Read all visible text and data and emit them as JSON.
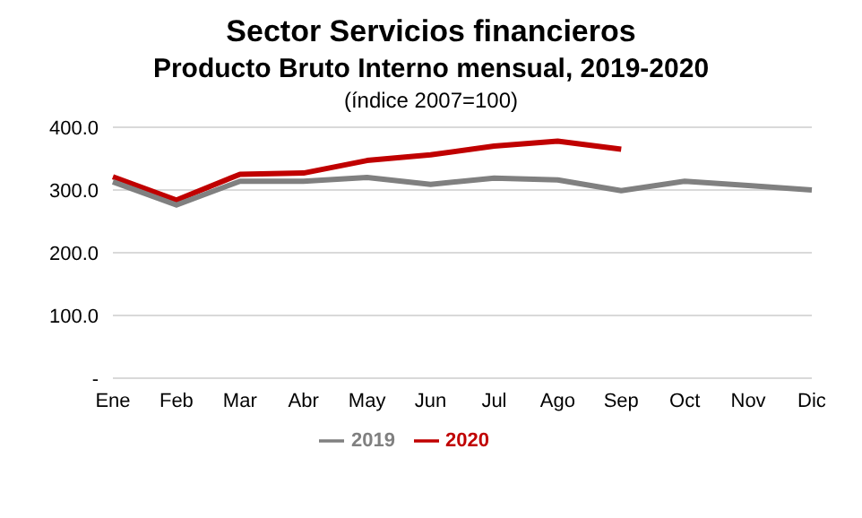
{
  "chart_data": {
    "type": "line",
    "title": "Sector Servicios financieros",
    "subtitle": "Producto Bruto Interno mensual, 2019-2020",
    "annotations": [
      "(índice 2007=100)"
    ],
    "categories": [
      "Ene",
      "Feb",
      "Mar",
      "Abr",
      "May",
      "Jun",
      "Jul",
      "Ago",
      "Sep",
      "Oct",
      "Nov",
      "Dic"
    ],
    "series": [
      {
        "name": "2020",
        "color": "#c00000",
        "values": [
          321,
          284,
          325,
          327,
          347,
          356,
          370,
          378,
          365,
          null,
          null,
          null
        ]
      },
      {
        "name": "2019",
        "color": "#808080",
        "values": [
          313,
          276,
          314,
          314,
          320,
          309,
          319,
          316,
          299,
          314,
          307,
          300
        ]
      }
    ],
    "ylim": [
      0,
      400
    ],
    "yticks": [
      {
        "value": 0,
        "label": "-"
      },
      {
        "value": 100,
        "label": "100.0"
      },
      {
        "value": 200,
        "label": "200.0"
      },
      {
        "value": 300,
        "label": "300.0"
      },
      {
        "value": 400,
        "label": "400.0"
      }
    ],
    "grid": "y",
    "legend": "bottom",
    "marker": "none",
    "line_style": "solid"
  }
}
